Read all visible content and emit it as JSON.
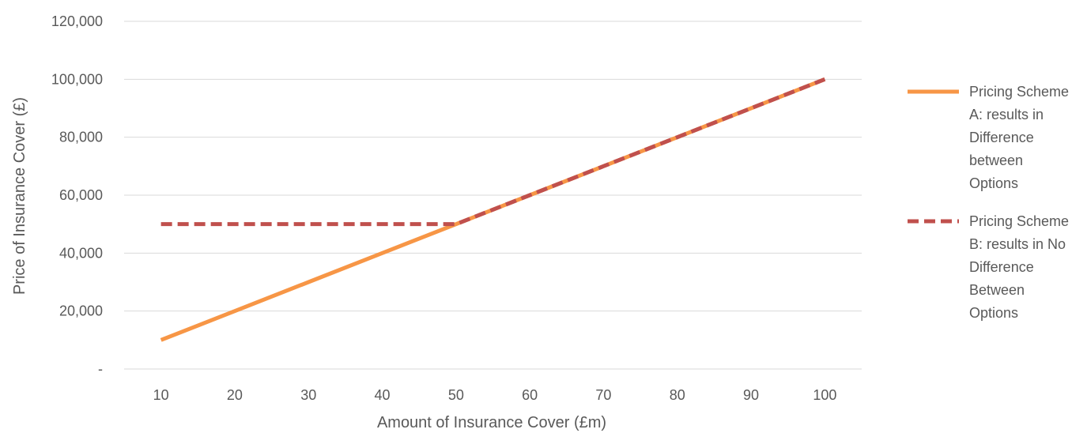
{
  "chart_data": {
    "type": "line",
    "title": "",
    "xlabel": "Amount of Insurance Cover (£m)",
    "ylabel": "Price of Insurance Cover (£)",
    "categories": [
      10,
      20,
      30,
      40,
      50,
      60,
      70,
      80,
      90,
      100
    ],
    "ylim": [
      0,
      120000
    ],
    "y_ticks": [
      0,
      20000,
      40000,
      60000,
      80000,
      100000,
      120000
    ],
    "y_tick_labels": [
      "-",
      "20,000",
      "40,000",
      "60,000",
      "80,000",
      "100,000",
      "120,000"
    ],
    "grid": true,
    "legend_position": "right",
    "series": [
      {
        "name": "Pricing Scheme A: results in Difference between Options",
        "legend_lines": [
          "Pricing Scheme",
          "A: results in",
          "Difference",
          "between",
          "Options"
        ],
        "values": [
          10000,
          20000,
          30000,
          40000,
          50000,
          60000,
          70000,
          80000,
          90000,
          100000
        ],
        "color": "#F79646",
        "style": "solid"
      },
      {
        "name": "Pricing Scheme B: results in No Difference Between Options",
        "legend_lines": [
          "Pricing Scheme",
          "B: results in No",
          "Difference",
          "Between",
          "Options"
        ],
        "values": [
          50000,
          50000,
          50000,
          50000,
          50000,
          60000,
          70000,
          80000,
          90000,
          100000
        ],
        "color": "#C0504D",
        "style": "dashed"
      }
    ]
  }
}
